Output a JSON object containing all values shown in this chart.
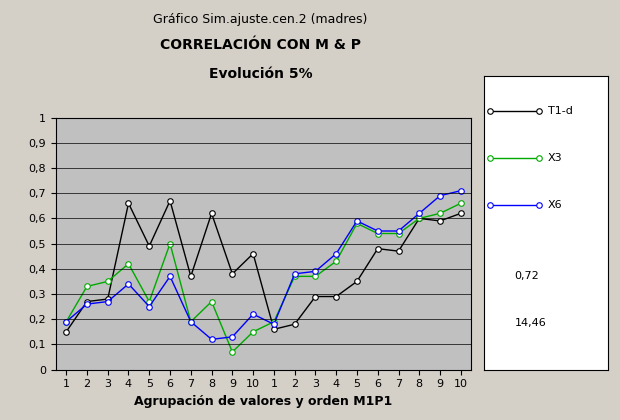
{
  "title_line1": "Gráfico Sim.ajuste.cen.2 (madres)",
  "title_line2": "CORRELACIÓN CON M & P",
  "title_line3": "Evolución 5%",
  "xlabel": "Agrupación de valores y orden M1P1",
  "xlim": [
    0.5,
    20.5
  ],
  "ylim": [
    0,
    1.0
  ],
  "yticks": [
    0,
    0.1,
    0.2,
    0.3,
    0.4,
    0.5,
    0.6,
    0.7,
    0.8,
    0.9,
    1
  ],
  "ytick_labels": [
    "0",
    "0,1",
    "0,2",
    "0,3",
    "0,4",
    "0,5",
    "0,6",
    "0,7",
    "0,8",
    "0,9",
    "1"
  ],
  "xtick_positions": [
    1,
    2,
    3,
    4,
    5,
    6,
    7,
    8,
    9,
    10,
    11,
    12,
    13,
    14,
    15,
    16,
    17,
    18,
    19,
    20
  ],
  "xtick_labels": [
    "1",
    "2",
    "3",
    "4",
    "5",
    "6",
    "7",
    "8",
    "9",
    "10",
    "1",
    "2",
    "3",
    "4",
    "5",
    "6",
    "7",
    "8",
    "9",
    "10"
  ],
  "plot_bg_color": "#c0c0c0",
  "fig_bg_color": "#d4d0c8",
  "grid_color": "#000000",
  "legend_extra": [
    "0,72",
    "14,46"
  ],
  "series": [
    {
      "name": "T1-d",
      "color": "#000000",
      "marker": "o",
      "markersize": 4,
      "linewidth": 1.0,
      "y": [
        0.15,
        0.27,
        0.28,
        0.66,
        0.49,
        0.67,
        0.37,
        0.62,
        0.38,
        0.46,
        0.16,
        0.18,
        0.29,
        0.29,
        0.35,
        0.48,
        0.47,
        0.6,
        0.59,
        0.62
      ]
    },
    {
      "name": "X3",
      "color": "#00aa00",
      "marker": "o",
      "markersize": 4,
      "linewidth": 1.0,
      "y": [
        0.19,
        0.33,
        0.35,
        0.42,
        0.27,
        0.5,
        0.19,
        0.27,
        0.07,
        0.15,
        0.19,
        0.37,
        0.37,
        0.43,
        0.58,
        0.54,
        0.54,
        0.6,
        0.62,
        0.66
      ]
    },
    {
      "name": "X6",
      "color": "#0000ff",
      "marker": "o",
      "markersize": 4,
      "linewidth": 1.0,
      "y": [
        0.19,
        0.26,
        0.27,
        0.34,
        0.25,
        0.37,
        0.19,
        0.12,
        0.13,
        0.22,
        0.18,
        0.38,
        0.39,
        0.46,
        0.59,
        0.55,
        0.55,
        0.62,
        0.69,
        0.71
      ]
    }
  ]
}
